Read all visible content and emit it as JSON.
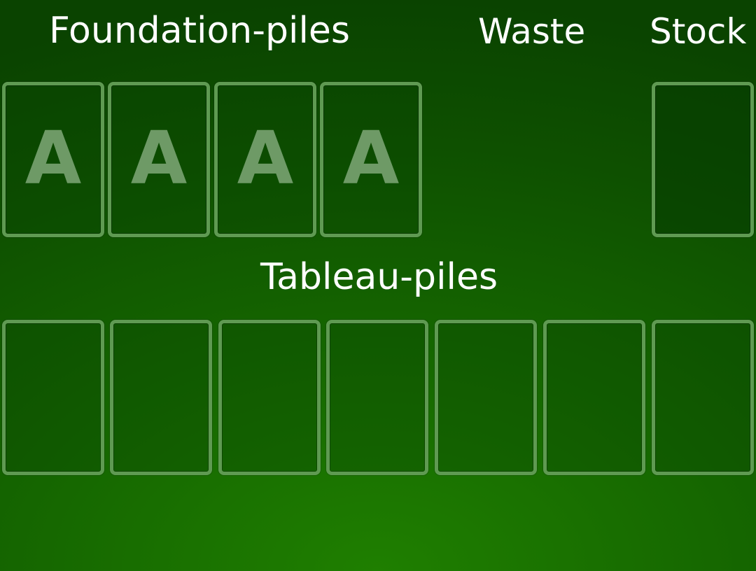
{
  "labels": {
    "foundation": "Foundation-piles",
    "waste": "Waste",
    "stock": "Stock",
    "tableau": "Tableau-piles"
  },
  "foundation_piles": [
    {
      "placeholder": "A"
    },
    {
      "placeholder": "A"
    },
    {
      "placeholder": "A"
    },
    {
      "placeholder": "A"
    }
  ],
  "colors": {
    "felt_center": "#1f7f00",
    "felt_edge": "#0a4300",
    "pile_border": "#5f9a52",
    "ace_placeholder": "#6e9a66",
    "text": "#ffffff"
  }
}
